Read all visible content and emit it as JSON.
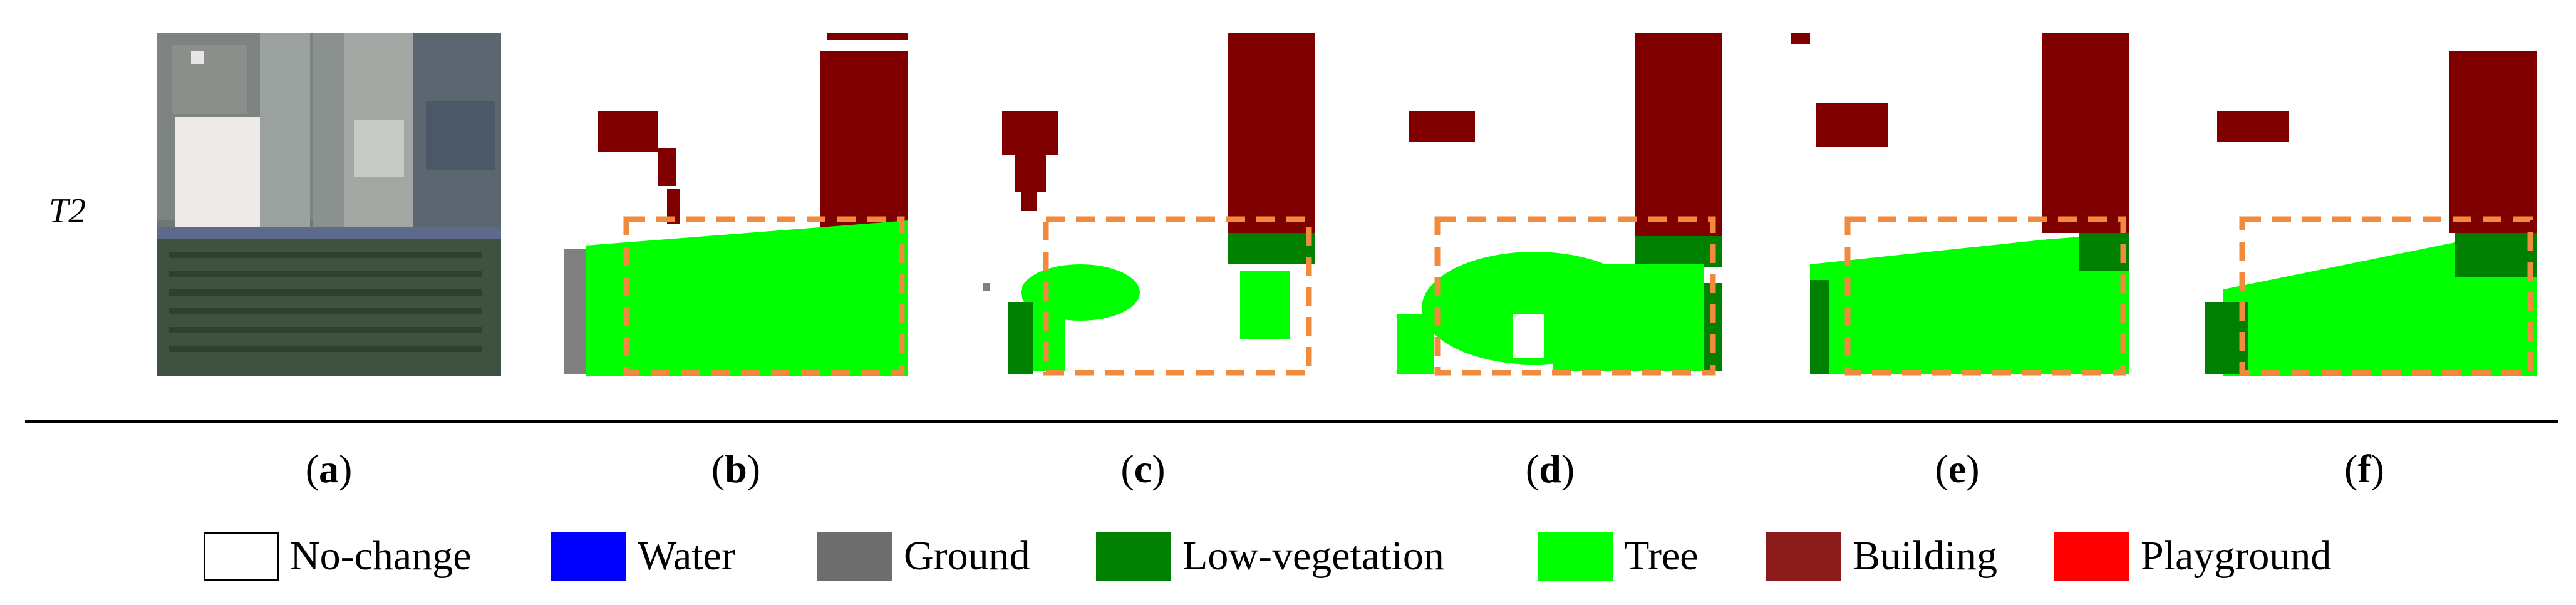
{
  "row_label": "T2",
  "panels": [
    {
      "id": "a",
      "type": "photo"
    },
    {
      "id": "b",
      "type": "map"
    },
    {
      "id": "c",
      "type": "map"
    },
    {
      "id": "d",
      "type": "map"
    },
    {
      "id": "e",
      "type": "map"
    },
    {
      "id": "f",
      "type": "map"
    }
  ],
  "captions": [
    "a",
    "b",
    "c",
    "d",
    "e",
    "f"
  ],
  "legend": [
    {
      "label": "No-change",
      "color": "#ffffff"
    },
    {
      "label": "Water",
      "color": "#0000ff"
    },
    {
      "label": "Ground",
      "color": "#808080"
    },
    {
      "label": "Low-vegetation",
      "color": "#008000"
    },
    {
      "label": "Tree",
      "color": "#00ff00"
    },
    {
      "label": "Building",
      "color": "#800000"
    },
    {
      "label": "Playground",
      "color": "#ff0000"
    }
  ],
  "highlight_color": "#f08a3c"
}
